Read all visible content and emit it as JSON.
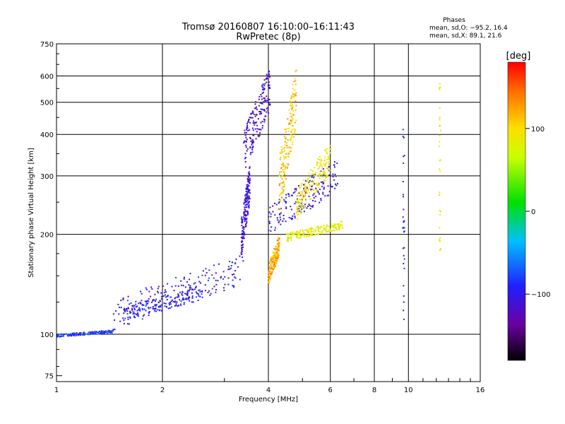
{
  "chart_data": {
    "type": "scatter",
    "title": "Tromsø 20160807 16:10:00–16:11:43",
    "subtitle": "RwPretec (8p)",
    "xlabel": "Frequency [MHz]",
    "ylabel": "Stationary phase Virtual Height [km]",
    "xscale": "log",
    "yscale": "log",
    "xlim": [
      1,
      16
    ],
    "ylim": [
      72,
      750
    ],
    "xticks": [
      "1",
      "2",
      "4",
      "6",
      "8",
      "10",
      "16"
    ],
    "yticks": [
      "75",
      "100",
      "200",
      "300",
      "400",
      "500",
      "600",
      "750"
    ],
    "grid": true,
    "legend": {
      "title": "Phases",
      "lines": [
        "mean, sd,O: −95.2, 16.4",
        "mean, sd,X:  89.1, 21.6"
      ]
    },
    "colorbar": {
      "label": "[deg]",
      "ticks": [
        "100",
        "0",
        "−100"
      ],
      "range": [
        -180,
        180
      ],
      "colormap": "rainbow (black → purple → blue → cyan → green → yellow → red)"
    },
    "traces": [
      {
        "type": "band",
        "x_range": [
          1.0,
          1.45
        ],
        "y_range": [
          98,
          103
        ],
        "phase": -80
      },
      {
        "type": "band",
        "x_range": [
          1.45,
          3.4
        ],
        "y_range": [
          103,
          175
        ],
        "phase": -100
      },
      {
        "type": "band",
        "x_range": [
          1.55,
          2.6
        ],
        "y_range": [
          110,
          140
        ],
        "phase": -95
      },
      {
        "type": "band",
        "x_range": [
          3.35,
          3.55
        ],
        "y_range": [
          170,
          330
        ],
        "phase": -110
      },
      {
        "type": "band",
        "x_range": [
          3.4,
          4.05
        ],
        "y_range": [
          300,
          650
        ],
        "phase": -115
      },
      {
        "type": "band",
        "x_range": [
          4.0,
          6.3
        ],
        "y_range": [
          195,
          340
        ],
        "phase": -105
      },
      {
        "type": "band",
        "x_range": [
          4.0,
          4.3
        ],
        "y_range": [
          140,
          200
        ],
        "phase": 120
      },
      {
        "type": "band",
        "x_range": [
          4.3,
          4.8
        ],
        "y_range": [
          230,
          640
        ],
        "phase": 110
      },
      {
        "type": "band",
        "x_range": [
          4.5,
          6.5
        ],
        "y_range": [
          190,
          220
        ],
        "phase": 80
      },
      {
        "type": "band",
        "x_range": [
          4.8,
          6.0
        ],
        "y_range": [
          220,
          380
        ],
        "phase": 90
      },
      {
        "type": "column",
        "x": 9.7,
        "y_range": [
          110,
          450
        ],
        "phase": -100
      },
      {
        "type": "column",
        "x": 12.3,
        "y_range": [
          170,
          580
        ],
        "phase": 90
      }
    ]
  }
}
